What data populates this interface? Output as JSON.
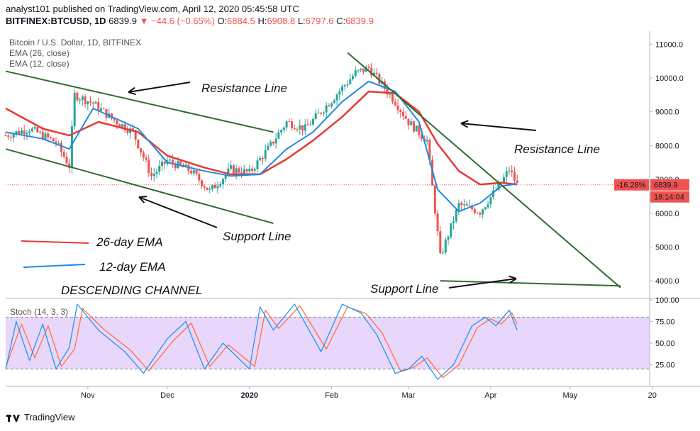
{
  "header": {
    "line1": "analyst101 published on TradingView.com, April 12, 2020 05:45:58 UTC",
    "symbol": "BITFINEX:BTCUSD, 1D",
    "last": "6839.9",
    "change": "▼ −44.6 (−0.65%)",
    "o_label": "O:",
    "o": "6884.5",
    "h_label": "H:",
    "h": "6908.8",
    "l_label": "L:",
    "l": "6797.6",
    "c_label": "C:",
    "c": "6839.9"
  },
  "legend": {
    "title": "Bitcoin / U.S. Dollar, 1D, BITFINEX",
    "ema26": "EMA (26, close)",
    "ema12": "EMA (12, close)"
  },
  "stoch_label": "Stoch (14, 3, 3)",
  "footer": {
    "brand": "TradingView"
  },
  "annotations": {
    "resistance_upper": "Resistance Line",
    "support_lower": "Support Line",
    "resistance_right": "Resistance Line",
    "support_right": "Support Line",
    "ema26_label": "26-day EMA",
    "ema12_label": "12-day EMA",
    "channel": "DESCENDING CHANNEL"
  },
  "price_tags": {
    "pct": "-16.28%",
    "price": "6839.9",
    "countdown": "18:14:04"
  },
  "colors": {
    "ema26": "#e53935",
    "ema12": "#1e88e5",
    "up": "#26a69a",
    "down": "#ef5350",
    "trend": "#2e6b2e",
    "stoch_k": "#2196f3",
    "stoch_d": "#ff7043",
    "stoch_bg": "#e9d6fb"
  },
  "chart_data": [
    {
      "type": "candlestick",
      "title": "Bitcoin / U.S. Dollar, 1D, BITFINEX",
      "x_ticks": [
        "Nov",
        "Dec",
        "2020",
        "Feb",
        "Mar",
        "Apr",
        "May",
        "20"
      ],
      "y_ticks": [
        "4000.0",
        "5000.0",
        "6000.0",
        "7000.0",
        "8000.0",
        "9000.0",
        "10000.0",
        "11000.0"
      ],
      "ylim": [
        3500,
        11300
      ],
      "close_series": {
        "x": [
          "2019-10-01",
          "2019-10-10",
          "2019-10-20",
          "2019-10-25",
          "2019-10-27",
          "2019-11-03",
          "2019-11-10",
          "2019-11-18",
          "2019-11-25",
          "2019-12-01",
          "2019-12-10",
          "2019-12-17",
          "2019-12-25",
          "2020-01-01",
          "2020-01-08",
          "2020-01-15",
          "2020-01-22",
          "2020-02-01",
          "2020-02-10",
          "2020-02-15",
          "2020-02-25",
          "2020-03-01",
          "2020-03-08",
          "2020-03-12",
          "2020-03-13",
          "2020-03-20",
          "2020-03-28",
          "2020-04-05",
          "2020-04-08",
          "2020-04-11"
        ],
        "values": [
          8300,
          8500,
          8100,
          7400,
          9500,
          9250,
          8800,
          8400,
          7100,
          7550,
          7250,
          6650,
          7300,
          7200,
          7900,
          8700,
          8500,
          9350,
          10150,
          10300,
          9300,
          8700,
          8150,
          5400,
          4700,
          6250,
          6050,
          6900,
          7300,
          6840
        ]
      },
      "ema26": {
        "x": [
          "2019-10-01",
          "2019-10-15",
          "2019-10-25",
          "2019-11-05",
          "2019-11-20",
          "2019-12-01",
          "2019-12-15",
          "2019-12-25",
          "2020-01-05",
          "2020-01-15",
          "2020-01-25",
          "2020-02-05",
          "2020-02-15",
          "2020-02-25",
          "2020-03-05",
          "2020-03-12",
          "2020-03-20",
          "2020-03-28",
          "2020-04-05",
          "2020-04-11"
        ],
        "values": [
          9100,
          8500,
          8300,
          8700,
          8400,
          7700,
          7350,
          7150,
          7150,
          7600,
          8150,
          8850,
          9600,
          9550,
          9000,
          8050,
          7250,
          6850,
          6900,
          6850
        ]
      },
      "ema12": {
        "x": [
          "2019-10-01",
          "2019-10-15",
          "2019-10-25",
          "2019-11-03",
          "2019-11-20",
          "2019-12-01",
          "2019-12-15",
          "2019-12-25",
          "2020-01-05",
          "2020-01-15",
          "2020-01-25",
          "2020-02-05",
          "2020-02-15",
          "2020-02-25",
          "2020-03-05",
          "2020-03-12",
          "2020-03-20",
          "2020-03-28",
          "2020-04-05",
          "2020-04-11"
        ],
        "values": [
          8400,
          8200,
          7900,
          9100,
          8500,
          7500,
          7250,
          7100,
          7150,
          7900,
          8400,
          9300,
          9900,
          9600,
          8700,
          6700,
          6050,
          6300,
          6800,
          6870
        ]
      },
      "trend_lines": [
        {
          "name": "Resistance Line",
          "from": [
            "2019-10-01",
            10200
          ],
          "to": [
            "2020-01-10",
            8400
          ]
        },
        {
          "name": "Support Line",
          "from": [
            "2019-10-01",
            7900
          ],
          "to": [
            "2020-01-10",
            5700
          ]
        },
        {
          "name": "Resistance Line",
          "from": [
            "2020-02-07",
            10750
          ],
          "to": [
            "2020-05-20",
            3800
          ]
        },
        {
          "name": "Support Line",
          "from": [
            "2020-03-13",
            4000
          ],
          "to": [
            "2020-05-20",
            3850
          ]
        }
      ],
      "last_price": 6839.9,
      "last_change_pct": -16.28
    },
    {
      "type": "line",
      "title": "Stoch (14, 3, 3)",
      "y_ticks": [
        "25.00",
        "50.00",
        "75.00",
        "100.00"
      ],
      "ylim": [
        0,
        100
      ],
      "bands": [
        20,
        80
      ],
      "k": {
        "x": [
          "2019-10-01",
          "2019-10-05",
          "2019-10-10",
          "2019-10-15",
          "2019-10-20",
          "2019-10-25",
          "2019-10-28",
          "2019-11-05",
          "2019-11-15",
          "2019-11-22",
          "2019-12-01",
          "2019-12-08",
          "2019-12-15",
          "2019-12-22",
          "2020-01-01",
          "2020-01-05",
          "2020-01-10",
          "2020-01-18",
          "2020-01-28",
          "2020-02-05",
          "2020-02-12",
          "2020-02-18",
          "2020-02-25",
          "2020-03-01",
          "2020-03-06",
          "2020-03-12",
          "2020-03-18",
          "2020-03-25",
          "2020-03-30",
          "2020-04-03",
          "2020-04-08",
          "2020-04-11"
        ],
        "values": [
          20,
          75,
          30,
          72,
          20,
          45,
          95,
          65,
          40,
          15,
          55,
          75,
          20,
          50,
          20,
          92,
          65,
          95,
          40,
          95,
          85,
          60,
          15,
          20,
          35,
          8,
          25,
          70,
          80,
          70,
          88,
          65
        ]
      },
      "d": {
        "x": [
          "2019-10-01",
          "2019-10-07",
          "2019-10-12",
          "2019-10-17",
          "2019-10-22",
          "2019-10-27",
          "2019-10-30",
          "2019-11-07",
          "2019-11-17",
          "2019-11-24",
          "2019-12-03",
          "2019-12-10",
          "2019-12-17",
          "2019-12-24",
          "2020-01-03",
          "2020-01-07",
          "2020-01-12",
          "2020-01-20",
          "2020-01-30",
          "2020-02-07",
          "2020-02-14",
          "2020-02-20",
          "2020-02-27",
          "2020-03-03",
          "2020-03-08",
          "2020-03-14",
          "2020-03-20",
          "2020-03-27",
          "2020-04-01",
          "2020-04-05",
          "2020-04-09",
          "2020-04-11"
        ],
        "values": [
          22,
          72,
          33,
          70,
          23,
          43,
          90,
          66,
          42,
          18,
          52,
          73,
          23,
          48,
          23,
          88,
          67,
          93,
          43,
          92,
          84,
          62,
          18,
          22,
          33,
          10,
          25,
          68,
          78,
          72,
          85,
          72
        ]
      }
    }
  ]
}
